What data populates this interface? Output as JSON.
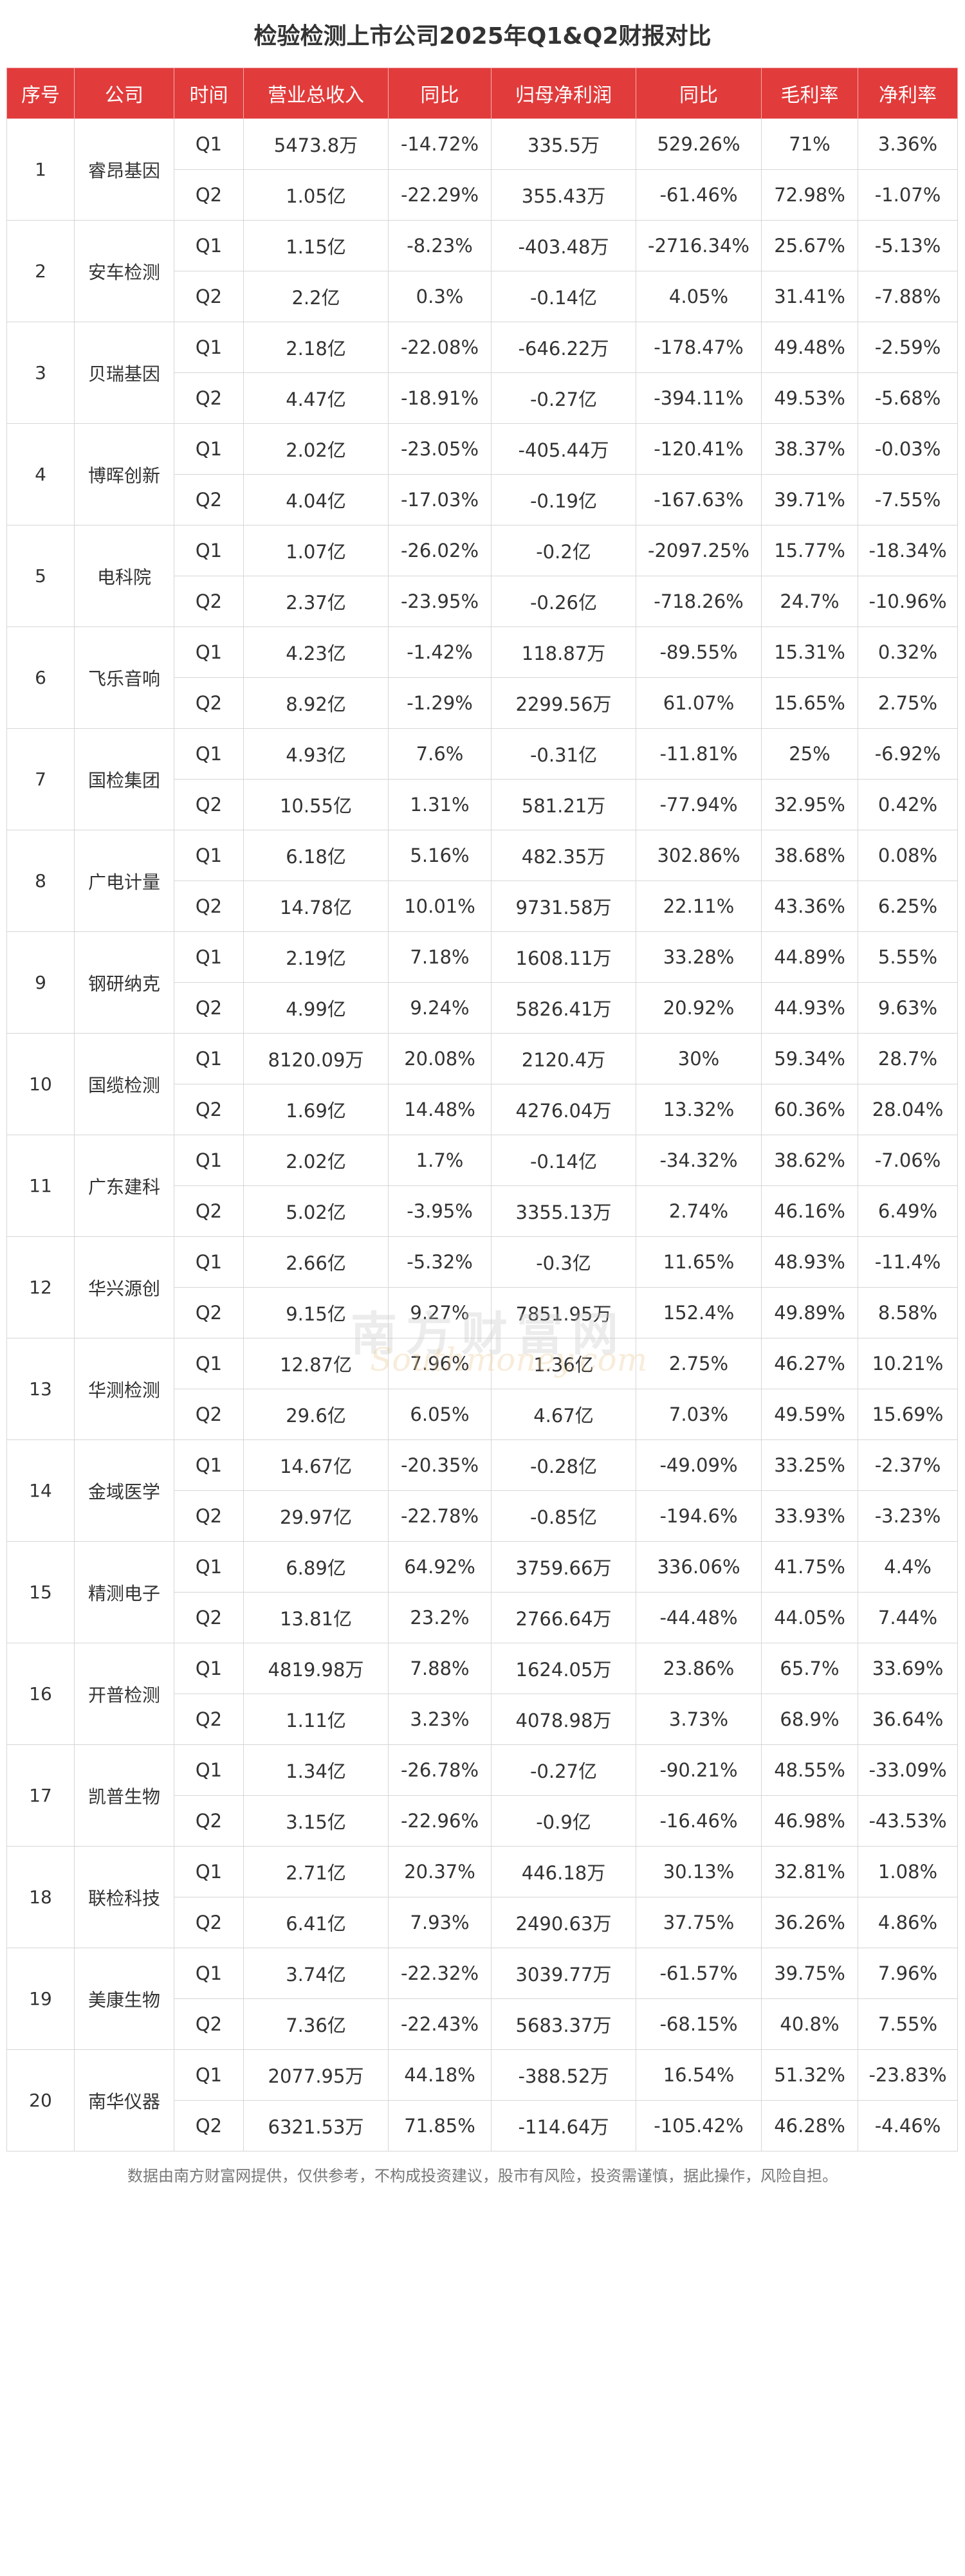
{
  "title": "检验检测上市公司2025年Q1&Q2财报对比",
  "headers": [
    "序号",
    "公司",
    "时间",
    "营业总收入",
    "同比",
    "归母净利润",
    "同比",
    "毛利率",
    "净利率"
  ],
  "companies": [
    {
      "seq": "1",
      "name": "睿昂基因",
      "rows": [
        {
          "period": "Q1",
          "revenue": "5473.8万",
          "revenue_yoy": "-14.72%",
          "net_profit": "335.5万",
          "profit_yoy": "529.26%",
          "gross_margin": "71%",
          "net_margin": "3.36%"
        },
        {
          "period": "Q2",
          "revenue": "1.05亿",
          "revenue_yoy": "-22.29%",
          "net_profit": "355.43万",
          "profit_yoy": "-61.46%",
          "gross_margin": "72.98%",
          "net_margin": "-1.07%"
        }
      ]
    },
    {
      "seq": "2",
      "name": "安车检测",
      "rows": [
        {
          "period": "Q1",
          "revenue": "1.15亿",
          "revenue_yoy": "-8.23%",
          "net_profit": "-403.48万",
          "profit_yoy": "-2716.34%",
          "gross_margin": "25.67%",
          "net_margin": "-5.13%"
        },
        {
          "period": "Q2",
          "revenue": "2.2亿",
          "revenue_yoy": "0.3%",
          "net_profit": "-0.14亿",
          "profit_yoy": "4.05%",
          "gross_margin": "31.41%",
          "net_margin": "-7.88%"
        }
      ]
    },
    {
      "seq": "3",
      "name": "贝瑞基因",
      "rows": [
        {
          "period": "Q1",
          "revenue": "2.18亿",
          "revenue_yoy": "-22.08%",
          "net_profit": "-646.22万",
          "profit_yoy": "-178.47%",
          "gross_margin": "49.48%",
          "net_margin": "-2.59%"
        },
        {
          "period": "Q2",
          "revenue": "4.47亿",
          "revenue_yoy": "-18.91%",
          "net_profit": "-0.27亿",
          "profit_yoy": "-394.11%",
          "gross_margin": "49.53%",
          "net_margin": "-5.68%"
        }
      ]
    },
    {
      "seq": "4",
      "name": "博晖创新",
      "rows": [
        {
          "period": "Q1",
          "revenue": "2.02亿",
          "revenue_yoy": "-23.05%",
          "net_profit": "-405.44万",
          "profit_yoy": "-120.41%",
          "gross_margin": "38.37%",
          "net_margin": "-0.03%"
        },
        {
          "period": "Q2",
          "revenue": "4.04亿",
          "revenue_yoy": "-17.03%",
          "net_profit": "-0.19亿",
          "profit_yoy": "-167.63%",
          "gross_margin": "39.71%",
          "net_margin": "-7.55%"
        }
      ]
    },
    {
      "seq": "5",
      "name": "电科院",
      "rows": [
        {
          "period": "Q1",
          "revenue": "1.07亿",
          "revenue_yoy": "-26.02%",
          "net_profit": "-0.2亿",
          "profit_yoy": "-2097.25%",
          "gross_margin": "15.77%",
          "net_margin": "-18.34%"
        },
        {
          "period": "Q2",
          "revenue": "2.37亿",
          "revenue_yoy": "-23.95%",
          "net_profit": "-0.26亿",
          "profit_yoy": "-718.26%",
          "gross_margin": "24.7%",
          "net_margin": "-10.96%"
        }
      ]
    },
    {
      "seq": "6",
      "name": "飞乐音响",
      "rows": [
        {
          "period": "Q1",
          "revenue": "4.23亿",
          "revenue_yoy": "-1.42%",
          "net_profit": "118.87万",
          "profit_yoy": "-89.55%",
          "gross_margin": "15.31%",
          "net_margin": "0.32%"
        },
        {
          "period": "Q2",
          "revenue": "8.92亿",
          "revenue_yoy": "-1.29%",
          "net_profit": "2299.56万",
          "profit_yoy": "61.07%",
          "gross_margin": "15.65%",
          "net_margin": "2.75%"
        }
      ]
    },
    {
      "seq": "7",
      "name": "国检集团",
      "rows": [
        {
          "period": "Q1",
          "revenue": "4.93亿",
          "revenue_yoy": "7.6%",
          "net_profit": "-0.31亿",
          "profit_yoy": "-11.81%",
          "gross_margin": "25%",
          "net_margin": "-6.92%"
        },
        {
          "period": "Q2",
          "revenue": "10.55亿",
          "revenue_yoy": "1.31%",
          "net_profit": "581.21万",
          "profit_yoy": "-77.94%",
          "gross_margin": "32.95%",
          "net_margin": "0.42%"
        }
      ]
    },
    {
      "seq": "8",
      "name": "广电计量",
      "rows": [
        {
          "period": "Q1",
          "revenue": "6.18亿",
          "revenue_yoy": "5.16%",
          "net_profit": "482.35万",
          "profit_yoy": "302.86%",
          "gross_margin": "38.68%",
          "net_margin": "0.08%"
        },
        {
          "period": "Q2",
          "revenue": "14.78亿",
          "revenue_yoy": "10.01%",
          "net_profit": "9731.58万",
          "profit_yoy": "22.11%",
          "gross_margin": "43.36%",
          "net_margin": "6.25%"
        }
      ]
    },
    {
      "seq": "9",
      "name": "钢研纳克",
      "rows": [
        {
          "period": "Q1",
          "revenue": "2.19亿",
          "revenue_yoy": "7.18%",
          "net_profit": "1608.11万",
          "profit_yoy": "33.28%",
          "gross_margin": "44.89%",
          "net_margin": "5.55%"
        },
        {
          "period": "Q2",
          "revenue": "4.99亿",
          "revenue_yoy": "9.24%",
          "net_profit": "5826.41万",
          "profit_yoy": "20.92%",
          "gross_margin": "44.93%",
          "net_margin": "9.63%"
        }
      ]
    },
    {
      "seq": "10",
      "name": "国缆检测",
      "rows": [
        {
          "period": "Q1",
          "revenue": "8120.09万",
          "revenue_yoy": "20.08%",
          "net_profit": "2120.4万",
          "profit_yoy": "30%",
          "gross_margin": "59.34%",
          "net_margin": "28.7%"
        },
        {
          "period": "Q2",
          "revenue": "1.69亿",
          "revenue_yoy": "14.48%",
          "net_profit": "4276.04万",
          "profit_yoy": "13.32%",
          "gross_margin": "60.36%",
          "net_margin": "28.04%"
        }
      ]
    },
    {
      "seq": "11",
      "name": "广东建科",
      "rows": [
        {
          "period": "Q1",
          "revenue": "2.02亿",
          "revenue_yoy": "1.7%",
          "net_profit": "-0.14亿",
          "profit_yoy": "-34.32%",
          "gross_margin": "38.62%",
          "net_margin": "-7.06%"
        },
        {
          "period": "Q2",
          "revenue": "5.02亿",
          "revenue_yoy": "-3.95%",
          "net_profit": "3355.13万",
          "profit_yoy": "2.74%",
          "gross_margin": "46.16%",
          "net_margin": "6.49%"
        }
      ]
    },
    {
      "seq": "12",
      "name": "华兴源创",
      "rows": [
        {
          "period": "Q1",
          "revenue": "2.66亿",
          "revenue_yoy": "-5.32%",
          "net_profit": "-0.3亿",
          "profit_yoy": "11.65%",
          "gross_margin": "48.93%",
          "net_margin": "-11.4%"
        },
        {
          "period": "Q2",
          "revenue": "9.15亿",
          "revenue_yoy": "9.27%",
          "net_profit": "7851.95万",
          "profit_yoy": "152.4%",
          "gross_margin": "49.89%",
          "net_margin": "8.58%"
        }
      ]
    },
    {
      "seq": "13",
      "name": "华测检测",
      "rows": [
        {
          "period": "Q1",
          "revenue": "12.87亿",
          "revenue_yoy": "7.96%",
          "net_profit": "1.36亿",
          "profit_yoy": "2.75%",
          "gross_margin": "46.27%",
          "net_margin": "10.21%"
        },
        {
          "period": "Q2",
          "revenue": "29.6亿",
          "revenue_yoy": "6.05%",
          "net_profit": "4.67亿",
          "profit_yoy": "7.03%",
          "gross_margin": "49.59%",
          "net_margin": "15.69%"
        }
      ]
    },
    {
      "seq": "14",
      "name": "金域医学",
      "rows": [
        {
          "period": "Q1",
          "revenue": "14.67亿",
          "revenue_yoy": "-20.35%",
          "net_profit": "-0.28亿",
          "profit_yoy": "-49.09%",
          "gross_margin": "33.25%",
          "net_margin": "-2.37%"
        },
        {
          "period": "Q2",
          "revenue": "29.97亿",
          "revenue_yoy": "-22.78%",
          "net_profit": "-0.85亿",
          "profit_yoy": "-194.6%",
          "gross_margin": "33.93%",
          "net_margin": "-3.23%"
        }
      ]
    },
    {
      "seq": "15",
      "name": "精测电子",
      "rows": [
        {
          "period": "Q1",
          "revenue": "6.89亿",
          "revenue_yoy": "64.92%",
          "net_profit": "3759.66万",
          "profit_yoy": "336.06%",
          "gross_margin": "41.75%",
          "net_margin": "4.4%"
        },
        {
          "period": "Q2",
          "revenue": "13.81亿",
          "revenue_yoy": "23.2%",
          "net_profit": "2766.64万",
          "profit_yoy": "-44.48%",
          "gross_margin": "44.05%",
          "net_margin": "7.44%"
        }
      ]
    },
    {
      "seq": "16",
      "name": "开普检测",
      "rows": [
        {
          "period": "Q1",
          "revenue": "4819.98万",
          "revenue_yoy": "7.88%",
          "net_profit": "1624.05万",
          "profit_yoy": "23.86%",
          "gross_margin": "65.7%",
          "net_margin": "33.69%"
        },
        {
          "period": "Q2",
          "revenue": "1.11亿",
          "revenue_yoy": "3.23%",
          "net_profit": "4078.98万",
          "profit_yoy": "3.73%",
          "gross_margin": "68.9%",
          "net_margin": "36.64%"
        }
      ]
    },
    {
      "seq": "17",
      "name": "凯普生物",
      "rows": [
        {
          "period": "Q1",
          "revenue": "1.34亿",
          "revenue_yoy": "-26.78%",
          "net_profit": "-0.27亿",
          "profit_yoy": "-90.21%",
          "gross_margin": "48.55%",
          "net_margin": "-33.09%"
        },
        {
          "period": "Q2",
          "revenue": "3.15亿",
          "revenue_yoy": "-22.96%",
          "net_profit": "-0.9亿",
          "profit_yoy": "-16.46%",
          "gross_margin": "46.98%",
          "net_margin": "-43.53%"
        }
      ]
    },
    {
      "seq": "18",
      "name": "联检科技",
      "rows": [
        {
          "period": "Q1",
          "revenue": "2.71亿",
          "revenue_yoy": "20.37%",
          "net_profit": "446.18万",
          "profit_yoy": "30.13%",
          "gross_margin": "32.81%",
          "net_margin": "1.08%"
        },
        {
          "period": "Q2",
          "revenue": "6.41亿",
          "revenue_yoy": "7.93%",
          "net_profit": "2490.63万",
          "profit_yoy": "37.75%",
          "gross_margin": "36.26%",
          "net_margin": "4.86%"
        }
      ]
    },
    {
      "seq": "19",
      "name": "美康生物",
      "rows": [
        {
          "period": "Q1",
          "revenue": "3.74亿",
          "revenue_yoy": "-22.32%",
          "net_profit": "3039.77万",
          "profit_yoy": "-61.57%",
          "gross_margin": "39.75%",
          "net_margin": "7.96%"
        },
        {
          "period": "Q2",
          "revenue": "7.36亿",
          "revenue_yoy": "-22.43%",
          "net_profit": "5683.37万",
          "profit_yoy": "-68.15%",
          "gross_margin": "40.8%",
          "net_margin": "7.55%"
        }
      ]
    },
    {
      "seq": "20",
      "name": "南华仪器",
      "rows": [
        {
          "period": "Q1",
          "revenue": "2077.95万",
          "revenue_yoy": "44.18%",
          "net_profit": "-388.52万",
          "profit_yoy": "16.54%",
          "gross_margin": "51.32%",
          "net_margin": "-23.83%"
        },
        {
          "period": "Q2",
          "revenue": "6321.53万",
          "revenue_yoy": "71.85%",
          "net_profit": "-114.64万",
          "profit_yoy": "-105.42%",
          "gross_margin": "46.28%",
          "net_margin": "-4.46%"
        }
      ]
    }
  ],
  "footnote": "数据由南方财富网提供，仅供参考，不构成投资建议，股市有风险，投资需谨慎，据此操作，风险自担。",
  "watermark": {
    "text_cn": "南方财富网",
    "text_en": "Southmoney.com"
  },
  "colors": {
    "header_bg": "#e23b3b",
    "header_text": "#ffffff",
    "border": "#d6d6d6"
  }
}
